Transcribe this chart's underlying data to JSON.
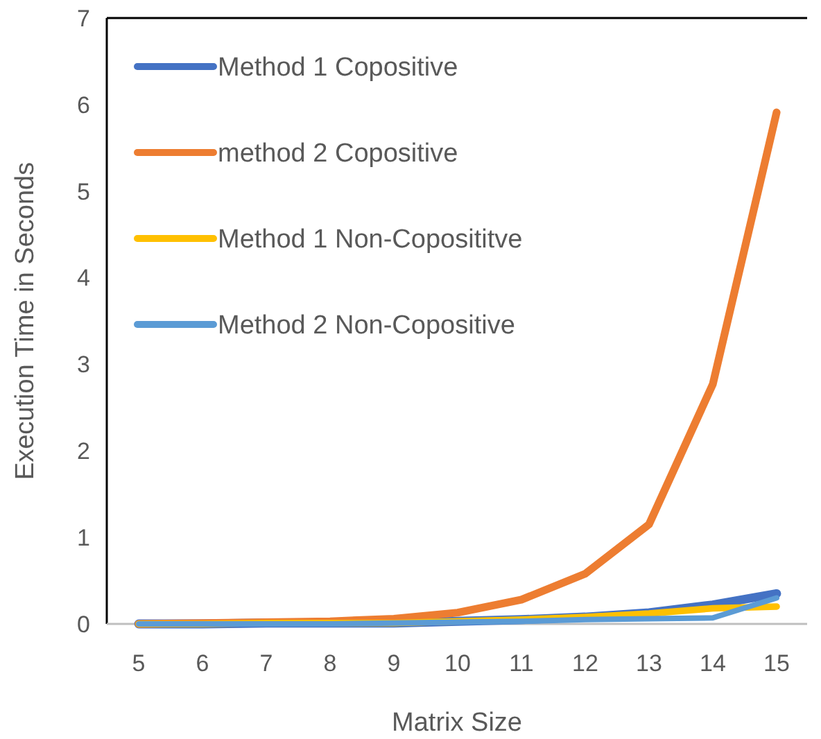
{
  "chart_data": {
    "type": "line",
    "xlabel": "Matrix Size",
    "ylabel": "Execution Time in Seconds",
    "categories": [
      "5",
      "6",
      "7",
      "8",
      "9",
      "10",
      "11",
      "12",
      "13",
      "14",
      "15"
    ],
    "ylim": [
      0,
      7
    ],
    "yticks": [
      0,
      1,
      2,
      3,
      4,
      5,
      6,
      7
    ],
    "grid": false,
    "legend": "top left",
    "series": [
      {
        "name": "Method 1 Copositive",
        "color": "#4472c4",
        "values": [
          0,
          0,
          0.01,
          0.01,
          0.01,
          0.03,
          0.05,
          0.08,
          0.13,
          0.22,
          0.35
        ]
      },
      {
        "name": "method 2 Copositive",
        "color": "#ed7d31",
        "values": [
          0,
          0.01,
          0.02,
          0.03,
          0.06,
          0.13,
          0.28,
          0.58,
          1.15,
          2.77,
          5.91
        ]
      },
      {
        "name": "Method 1 Non-Coposititve",
        "color": "#ffc000",
        "values": [
          0,
          0,
          0.01,
          0.01,
          0.01,
          0.03,
          0.05,
          0.08,
          0.12,
          0.18,
          0.2
        ]
      },
      {
        "name": "Method 2 Non-Copositive",
        "color": "#5b9bd5",
        "values": [
          0,
          0,
          0,
          0,
          0.01,
          0.02,
          0.03,
          0.05,
          0.06,
          0.07,
          0.3
        ]
      }
    ]
  }
}
